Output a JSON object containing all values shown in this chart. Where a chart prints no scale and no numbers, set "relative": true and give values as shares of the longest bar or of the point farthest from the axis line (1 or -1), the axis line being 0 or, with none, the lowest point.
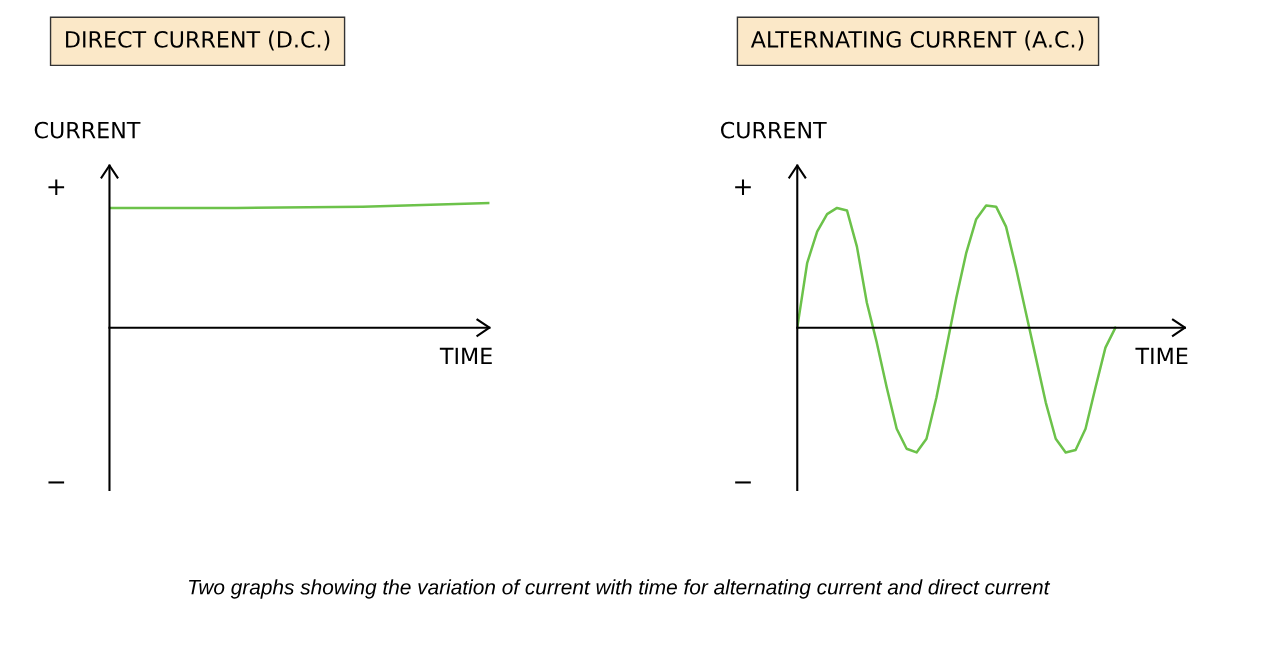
{
  "chart_data": [
    {
      "type": "line",
      "title": "DIRECT CURRENT (D.C.)",
      "xlabel": "TIME",
      "ylabel": "CURRENT",
      "relative": true,
      "marker": "none",
      "line_style": "solid",
      "categories": [
        null,
        null,
        null,
        null
      ],
      "series": [
        {
          "color": "#6cc24a",
          "values": [
            0.96,
            0.96,
            0.97,
            1
          ]
        }
      ],
      "annotations": [
        "+",
        "−"
      ]
    },
    {
      "type": "line",
      "title": "ALTERNATING CURRENT (A.C.)",
      "xlabel": "TIME",
      "ylabel": "CURRENT",
      "relative": true,
      "marker": "none",
      "line_style": "solid",
      "categories": [
        null,
        null,
        null,
        null,
        null,
        null,
        null,
        null,
        null,
        null,
        null,
        null,
        null,
        null,
        null,
        null,
        null,
        null,
        null,
        null,
        null,
        null,
        null,
        null,
        null,
        null,
        null,
        null,
        null,
        null,
        null,
        null,
        null,
        null,
        null,
        null,
        null,
        null,
        null,
        null
      ],
      "series": [
        {
          "color": "#6cc24a",
          "values": [
            0,
            0.52,
            0.77,
            0.91,
            0.96,
            0.94,
            0.65,
            0.2,
            -0.12,
            -0.48,
            -0.81,
            -0.97,
            -1,
            -0.89,
            -0.56,
            -0.16,
            0.24,
            0.6,
            0.87,
            0.98,
            0.97,
            0.81,
            0.48,
            0.12,
            -0.24,
            -0.6,
            -0.89,
            -1,
            -0.98,
            -0.81,
            -0.48,
            -0.16,
            0.0,
            null,
            null,
            null,
            null,
            null,
            null,
            null
          ]
        }
      ],
      "annotations": [
        "+",
        "−",
        "Two graphs showing the variation of current with time for alternating current and direct current"
      ]
    }
  ]
}
